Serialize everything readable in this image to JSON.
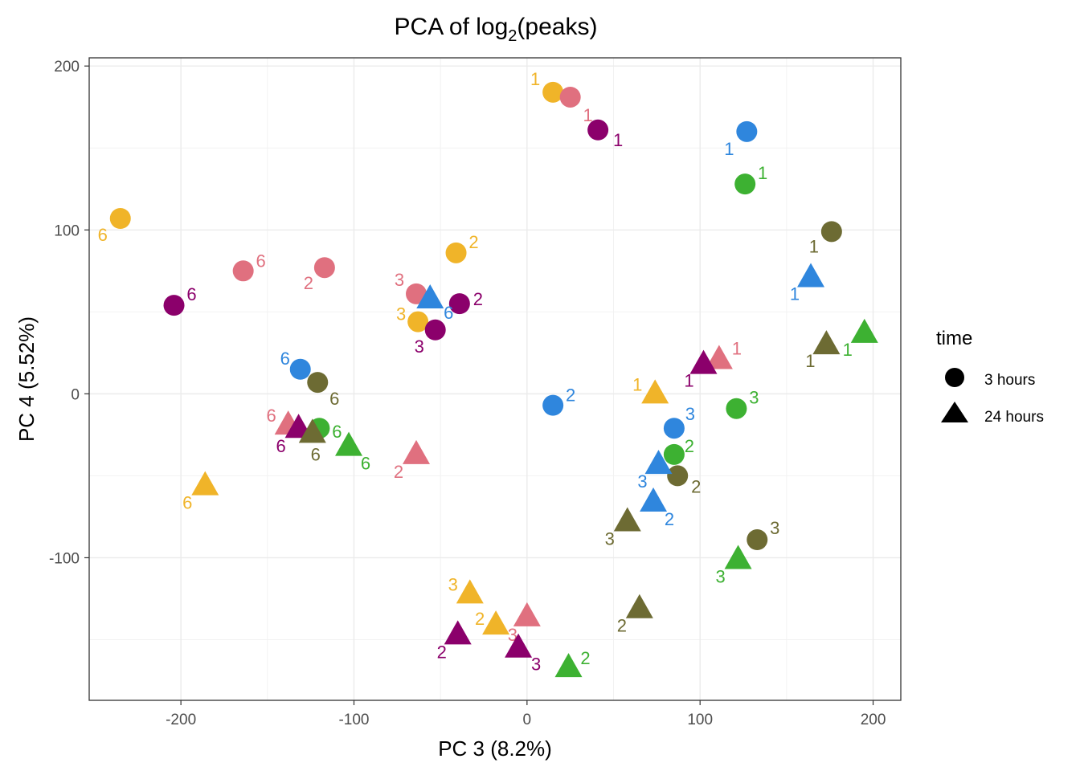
{
  "chart_data": {
    "type": "scatter",
    "title": "PCA of log",
    "title_subscript": "2",
    "title_suffix": "(peaks)",
    "xlabel": "PC 3 (8.2%)",
    "ylabel": "PC 4 (5.52%)",
    "xlim": [
      -253,
      216
    ],
    "ylim": [
      -187,
      205
    ],
    "x_ticks": [
      -200,
      -100,
      0,
      100,
      200
    ],
    "y_ticks": [
      -100,
      0,
      100,
      200
    ],
    "x_tick_labels": [
      "-200",
      "-100",
      "0",
      "100",
      "200"
    ],
    "y_tick_labels": [
      "-100",
      "0",
      "100",
      "200"
    ],
    "grid": true,
    "legend": {
      "title": "time",
      "placement": "right",
      "entries": [
        {
          "label": "3 hours",
          "shape": "circle"
        },
        {
          "label": "24 hours",
          "shape": "triangle"
        }
      ]
    },
    "colors": {
      "orange": "#F0B429",
      "pink": "#E0707F",
      "purple": "#8B006B",
      "blue": "#2F86DD",
      "green": "#3DB132",
      "olive": "#6D6B33"
    },
    "points": [
      {
        "x": 15,
        "y": 184,
        "shape": "circle",
        "color": "orange",
        "label": "1",
        "lx": -22,
        "ly": -17
      },
      {
        "x": 25,
        "y": 181,
        "shape": "circle",
        "color": "pink",
        "label": "1",
        "lx": 22,
        "ly": 22
      },
      {
        "x": 41,
        "y": 161,
        "shape": "circle",
        "color": "purple",
        "label": "1",
        "lx": 25,
        "ly": 12
      },
      {
        "x": 127,
        "y": 160,
        "shape": "circle",
        "color": "blue",
        "label": "1",
        "lx": -22,
        "ly": 21
      },
      {
        "x": 126,
        "y": 128,
        "shape": "circle",
        "color": "green",
        "label": "1",
        "lx": 22,
        "ly": -14
      },
      {
        "x": 176,
        "y": 99,
        "shape": "circle",
        "color": "olive",
        "label": "1",
        "lx": -22,
        "ly": 18
      },
      {
        "x": -235,
        "y": 107,
        "shape": "circle",
        "color": "orange",
        "label": "6",
        "lx": -22,
        "ly": 20
      },
      {
        "x": -164,
        "y": 75,
        "shape": "circle",
        "color": "pink",
        "label": "6",
        "lx": 22,
        "ly": -13
      },
      {
        "x": -117,
        "y": 77,
        "shape": "circle",
        "color": "pink",
        "label": "2",
        "lx": -20,
        "ly": 19
      },
      {
        "x": -204,
        "y": 54,
        "shape": "circle",
        "color": "purple",
        "label": "6",
        "lx": 22,
        "ly": -14
      },
      {
        "x": -41,
        "y": 86,
        "shape": "circle",
        "color": "orange",
        "label": "2",
        "lx": 22,
        "ly": -14
      },
      {
        "x": -64,
        "y": 61,
        "shape": "circle",
        "color": "pink",
        "label": "3",
        "lx": -21,
        "ly": -18
      },
      {
        "x": -39,
        "y": 55,
        "shape": "circle",
        "color": "purple",
        "label": "2",
        "lx": 23,
        "ly": -6
      },
      {
        "x": -63,
        "y": 44,
        "shape": "circle",
        "color": "orange",
        "label": "3",
        "lx": -21,
        "ly": -10
      },
      {
        "x": -53,
        "y": 39,
        "shape": "circle",
        "color": "purple",
        "label": "3",
        "lx": -20,
        "ly": 20
      },
      {
        "x": -131,
        "y": 15,
        "shape": "circle",
        "color": "blue",
        "label": "6",
        "lx": -19,
        "ly": -14
      },
      {
        "x": -121,
        "y": 7,
        "shape": "circle",
        "color": "olive",
        "label": "6",
        "lx": 21,
        "ly": 20
      },
      {
        "x": -120,
        "y": -21,
        "shape": "circle",
        "color": "green",
        "label": "6",
        "lx": 22,
        "ly": 4
      },
      {
        "x": 15,
        "y": -7,
        "shape": "circle",
        "color": "blue",
        "label": "2",
        "lx": 22,
        "ly": -13
      },
      {
        "x": 121,
        "y": -9,
        "shape": "circle",
        "color": "green",
        "label": "3",
        "lx": 22,
        "ly": -14
      },
      {
        "x": 85,
        "y": -21,
        "shape": "circle",
        "color": "blue",
        "label": "3",
        "lx": 20,
        "ly": -18
      },
      {
        "x": 85,
        "y": -37,
        "shape": "circle",
        "color": "green",
        "label": "2",
        "lx": 19,
        "ly": -11
      },
      {
        "x": 87,
        "y": -50,
        "shape": "circle",
        "color": "olive",
        "label": "2",
        "lx": 23,
        "ly": 13
      },
      {
        "x": 133,
        "y": -89,
        "shape": "circle",
        "color": "olive",
        "label": "3",
        "lx": 22,
        "ly": -15
      },
      {
        "x": 164,
        "y": 71,
        "shape": "triangle",
        "color": "blue",
        "label": "1",
        "lx": -20,
        "ly": 20
      },
      {
        "x": 173,
        "y": 30,
        "shape": "triangle",
        "color": "olive",
        "label": "1",
        "lx": -20,
        "ly": 20
      },
      {
        "x": 195,
        "y": 37,
        "shape": "triangle",
        "color": "green",
        "label": "1",
        "lx": -21,
        "ly": 20
      },
      {
        "x": 111,
        "y": 21,
        "shape": "triangle",
        "color": "pink",
        "label": "1",
        "lx": 22,
        "ly": -14
      },
      {
        "x": 102,
        "y": 18,
        "shape": "triangle",
        "color": "purple",
        "label": "1",
        "lx": -18,
        "ly": 20
      },
      {
        "x": 74,
        "y": 0,
        "shape": "triangle",
        "color": "orange",
        "label": "1",
        "lx": -22,
        "ly": -12
      },
      {
        "x": -56,
        "y": 58,
        "shape": "triangle",
        "color": "blue",
        "label": "6",
        "lx": 23,
        "ly": 17
      },
      {
        "x": -138,
        "y": -19,
        "shape": "triangle",
        "color": "pink",
        "label": "6",
        "lx": -21,
        "ly": -12
      },
      {
        "x": -132,
        "y": -21,
        "shape": "triangle",
        "color": "purple",
        "label": "6",
        "lx": -22,
        "ly": 22
      },
      {
        "x": -124,
        "y": -24,
        "shape": "triangle",
        "color": "olive",
        "label": "6",
        "lx": 4,
        "ly": 26
      },
      {
        "x": -103,
        "y": -32,
        "shape": "triangle",
        "color": "green",
        "label": "6",
        "lx": 21,
        "ly": 21
      },
      {
        "x": -64,
        "y": -37,
        "shape": "triangle",
        "color": "pink",
        "label": "2",
        "lx": -22,
        "ly": 21
      },
      {
        "x": -186,
        "y": -56,
        "shape": "triangle",
        "color": "orange",
        "label": "6",
        "lx": -22,
        "ly": 21
      },
      {
        "x": 76,
        "y": -43,
        "shape": "triangle",
        "color": "blue",
        "label": "3",
        "lx": -20,
        "ly": 21
      },
      {
        "x": 73,
        "y": -66,
        "shape": "triangle",
        "color": "blue",
        "label": "2",
        "lx": 20,
        "ly": 21
      },
      {
        "x": 58,
        "y": -78,
        "shape": "triangle",
        "color": "olive",
        "label": "3",
        "lx": -22,
        "ly": 21
      },
      {
        "x": 122,
        "y": -101,
        "shape": "triangle",
        "color": "green",
        "label": "3",
        "lx": -22,
        "ly": 21
      },
      {
        "x": 65,
        "y": -131,
        "shape": "triangle",
        "color": "olive",
        "label": "2",
        "lx": -22,
        "ly": 21
      },
      {
        "x": -33,
        "y": -122,
        "shape": "triangle",
        "color": "orange",
        "label": "3",
        "lx": -21,
        "ly": -12
      },
      {
        "x": -18,
        "y": -141,
        "shape": "triangle",
        "color": "orange",
        "label": "2",
        "lx": -20,
        "ly": -8
      },
      {
        "x": 0,
        "y": -136,
        "shape": "triangle",
        "color": "pink",
        "label": "3",
        "lx": -18,
        "ly": 22
      },
      {
        "x": -40,
        "y": -147,
        "shape": "triangle",
        "color": "purple",
        "label": "2",
        "lx": -20,
        "ly": 21
      },
      {
        "x": -5,
        "y": -155,
        "shape": "triangle",
        "color": "purple",
        "label": "3",
        "lx": 22,
        "ly": 20
      },
      {
        "x": 24,
        "y": -167,
        "shape": "triangle",
        "color": "green",
        "label": "2",
        "lx": 21,
        "ly": -12
      }
    ]
  }
}
